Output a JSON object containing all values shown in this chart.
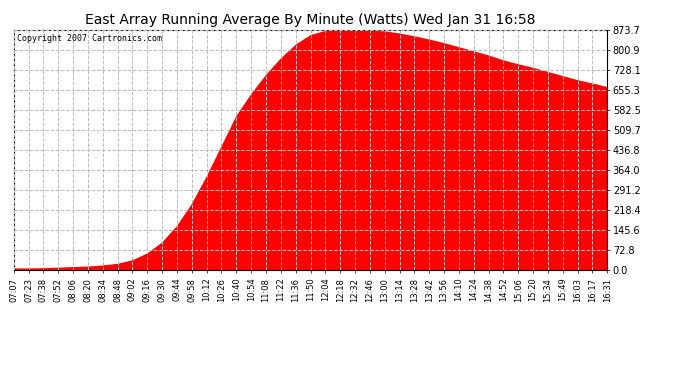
{
  "title": "East Array Running Average By Minute (Watts) Wed Jan 31 16:58",
  "copyright": "Copyright 2007 Cartronics.com",
  "fill_color": "#FF0000",
  "background_color": "#FFFFFF",
  "grid_color": "#BBBBBB",
  "yticks": [
    0.0,
    72.8,
    145.6,
    218.4,
    291.2,
    364.0,
    436.8,
    509.7,
    582.5,
    655.3,
    728.1,
    800.9,
    873.7
  ],
  "ymax": 873.7,
  "xtick_labels": [
    "07:07",
    "07:23",
    "07:38",
    "07:52",
    "08:06",
    "08:20",
    "08:34",
    "08:48",
    "09:02",
    "09:16",
    "09:30",
    "09:44",
    "09:58",
    "10:12",
    "10:26",
    "10:40",
    "10:54",
    "11:08",
    "11:22",
    "11:36",
    "11:50",
    "12:04",
    "12:18",
    "12:32",
    "12:46",
    "13:00",
    "13:14",
    "13:28",
    "13:42",
    "13:56",
    "14:10",
    "14:24",
    "14:38",
    "14:52",
    "15:06",
    "15:20",
    "15:34",
    "15:49",
    "16:03",
    "16:17",
    "16:31"
  ],
  "curve_y": [
    5,
    5,
    6,
    8,
    10,
    12,
    16,
    22,
    35,
    60,
    100,
    160,
    240,
    340,
    450,
    560,
    640,
    710,
    770,
    820,
    855,
    870,
    873,
    873,
    870,
    868,
    860,
    850,
    838,
    825,
    810,
    795,
    780,
    762,
    748,
    735,
    720,
    705,
    690,
    678,
    665
  ]
}
